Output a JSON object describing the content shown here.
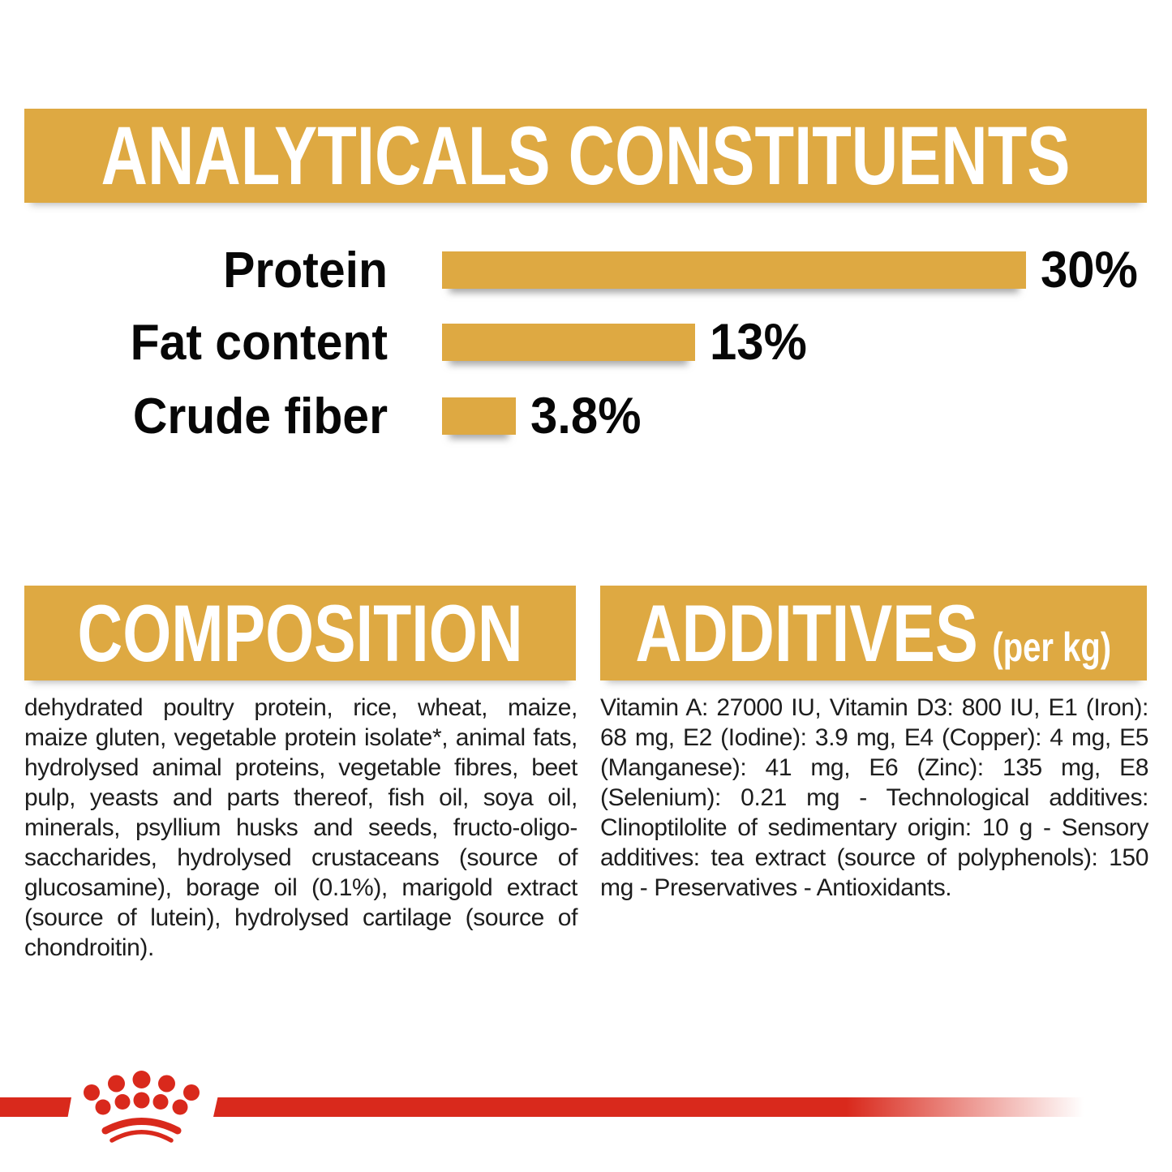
{
  "header": {
    "title": "ANALYTICALS CONSTITUENTS"
  },
  "chart_data": {
    "type": "bar",
    "orientation": "horizontal",
    "title": "ANALYTICALS CONSTITUENTS",
    "categories": [
      "Protein",
      "Fat content",
      "Crude fiber"
    ],
    "values": [
      30,
      13,
      3.8
    ],
    "value_labels": [
      "30%",
      "13%",
      "3.8%"
    ],
    "unit": "%",
    "xlim": [
      0,
      30
    ],
    "bar_color": "#DEA942",
    "grid": false,
    "legend": false
  },
  "composition": {
    "title": "COMPOSITION",
    "body": "dehydrated poultry protein, rice, wheat, maize, maize gluten, vegetable protein isolate*, animal fats, hydrolysed animal proteins, vegetable fibres, beet pulp, yeasts and parts thereof, fish oil, soya oil, minerals, psyllium husks and seeds, fructo-oligo-saccharides, hydrolysed crustaceans (source of glucosamine), borage oil (0.1%), marigold extract (source of lutein), hydrolysed cartilage (source of chondroitin)."
  },
  "additives": {
    "title": "ADDITIVES",
    "unit_note": "(per kg)",
    "body": "Vitamin A: 27000 IU, Vitamin D3: 800 IU, E1 (Iron): 68 mg, E2 (Iodine): 3.9 mg, E4 (Copper): 4 mg, E5 (Manganese): 41 mg, E6 (Zinc): 135 mg, E8 (Selenium): 0.21 mg - Technological additives: Clinoptilolite of sedimentary origin: 10 g - Sensory additives: tea extract (source of polyphenols): 150 mg - Preservatives - Antioxidants."
  },
  "footer": {
    "brand_icon": "royal-canin-crown"
  },
  "colors": {
    "gold": "#DEA942",
    "red": "#D9291C",
    "text": "#1D1D1D",
    "banner_text": "#FFFFFF"
  }
}
